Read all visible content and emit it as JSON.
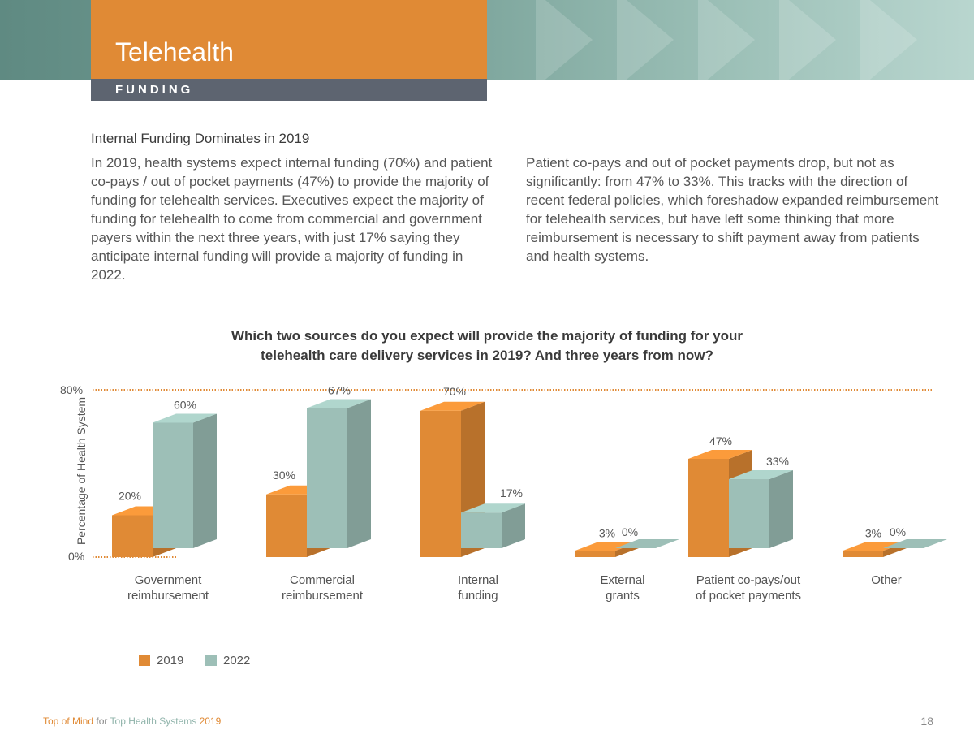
{
  "header": {
    "title": "Telehealth",
    "section": "FUNDING"
  },
  "article": {
    "heading": "Internal Funding Dominates in 2019",
    "para1": "In 2019, health systems expect internal funding (70%) and patient co-pays / out of pocket payments (47%) to provide the majority of funding for telehealth services. Executives expect the majority of funding for telehealth to come from commercial and government payers within the next three years, with just 17% saying they anticipate internal funding will provide a majority of funding in 2022.",
    "para2": "Patient co-pays and out of pocket payments drop, but not as significantly: from 47% to 33%. This tracks with the direction of recent federal policies, which foreshadow expanded reimbursement for telehealth services, but have left some thinking that more reimbursement is necessary to shift payment away from patients and health systems."
  },
  "chart_data": {
    "type": "bar",
    "title": "Which two sources do you expect will provide the majority of funding for your telehealth care delivery services in 2019? And three years from now?",
    "ylabel": "Percentage of Health System",
    "ylim": [
      0,
      80
    ],
    "yticks": [
      "80%",
      "0%"
    ],
    "categories": [
      "Government reimbursement",
      "Commercial reimbursement",
      "Internal funding",
      "External grants",
      "Patient co-pays/out of pocket payments",
      "Other"
    ],
    "category_lines": [
      [
        "Government",
        "reimbursement"
      ],
      [
        "Commercial",
        "reimbursement"
      ],
      [
        "Internal",
        "funding"
      ],
      [
        "External",
        "grants"
      ],
      [
        "Patient co-pays/out",
        "of pocket payments"
      ],
      [
        "Other",
        ""
      ]
    ],
    "series": [
      {
        "name": "2019",
        "color": "#e08a35",
        "values": [
          20,
          30,
          70,
          3,
          47,
          3
        ],
        "labels": [
          "20%",
          "30%",
          "70%",
          "3%",
          "47%",
          "3%"
        ]
      },
      {
        "name": "2022",
        "color": "#9dbfb7",
        "values": [
          60,
          67,
          17,
          0,
          33,
          0
        ],
        "labels": [
          "60%",
          "67%",
          "17%",
          "0%",
          "33%",
          "0%"
        ]
      }
    ],
    "legend_position": "bottom-left",
    "reference_line_color": "#e08a35"
  },
  "footer": {
    "brand1": "Top of Mind",
    "brand2": " for ",
    "brand3": "Top Health Systems",
    "brand4": " 2019",
    "page": "18"
  }
}
